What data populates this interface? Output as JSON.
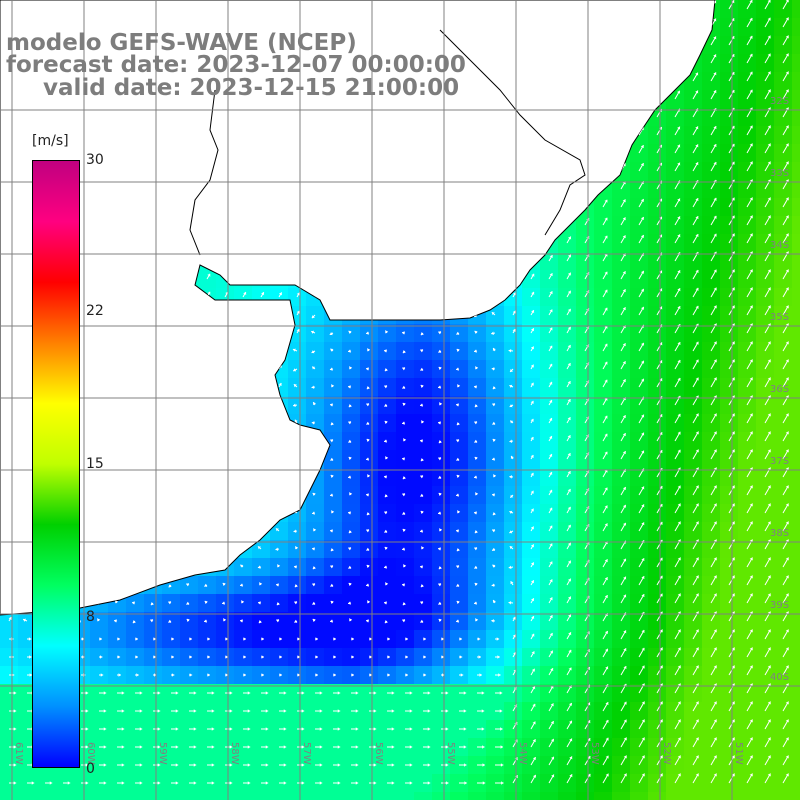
{
  "title": {
    "line1": "modelo GEFS-WAVE (NCEP)",
    "line2": "forecast date: 2023-12-07 00:00:00",
    "line3": "valid date: 2023-12-15 21:00:00"
  },
  "colorbar": {
    "unit": "[m/s]",
    "ticks": [
      "30",
      "22",
      "15",
      "8",
      "0"
    ],
    "tick_values": [
      30,
      22,
      15,
      8,
      0
    ],
    "min": 0,
    "max": 30,
    "colors": [
      "#0000ff",
      "#0090ff",
      "#00ffff",
      "#00ff60",
      "#00d000",
      "#c0ff00",
      "#ffff00",
      "#ff8000",
      "#ff0000",
      "#ff0080",
      "#c00080"
    ]
  },
  "grid_labels": {
    "latitudes": [
      "32S",
      "33S",
      "34S",
      "35S",
      "36S",
      "37S",
      "38S",
      "39S",
      "40S"
    ],
    "longitudes": [
      "61W",
      "60W",
      "59W",
      "58W",
      "57W",
      "56W",
      "55W",
      "54W",
      "53W",
      "52W",
      "51W"
    ]
  },
  "colors": {
    "land": "#ffffff",
    "coast": "#000000",
    "grid": "#808080",
    "arrows": "#ffffff",
    "title": "#7d7d7d"
  }
}
